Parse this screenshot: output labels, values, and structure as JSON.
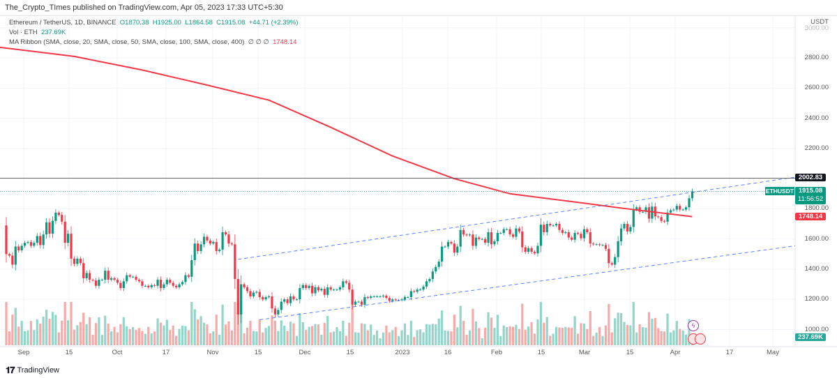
{
  "publisher_line": "The_Crypto_TImes published on TradingView.com, Apr 05, 2023 17:33 UTC+5:30",
  "legend": {
    "symbol": "Ethereum / TetherUS, 1D, BINANCE",
    "open": "O1870.38",
    "high": "H1925.00",
    "low": "L1864.58",
    "close": "C1915.08",
    "change": "+44.71 (+2.39%)",
    "vol_label": "Vol · ETH",
    "vol_value": "237.69K",
    "ma_label": "MA Ribbon (SMA, close, 20, SMA, close, 50, SMA, close, 100, SMA, close, 400)",
    "ma_dots": "∅ ∅ ∅",
    "ma_value": "1748.14"
  },
  "price_axis": {
    "currency": "USDT",
    "ticks": [
      "3000.00",
      "2800.00",
      "2600.00",
      "2400.00",
      "2200.00",
      "1800.00",
      "1600.00",
      "1400.00",
      "1200.00",
      "1000.00"
    ]
  },
  "tags": {
    "hline": "2002.83",
    "symbol": "ETHUSDT",
    "price": "1915.08",
    "countdown": "11:56:52",
    "ma": "1748.14",
    "volume": "237.69K"
  },
  "time_axis": [
    "Sep",
    "15",
    "Oct",
    "17",
    "Nov",
    "15",
    "Dec",
    "15",
    "2023",
    "16",
    "Feb",
    "15",
    "Mar",
    "15",
    "Apr",
    "17",
    "May"
  ],
  "footer": {
    "brand": "TradingView"
  },
  "colors": {
    "up": "#089981",
    "down": "#f23645",
    "ma": "#f23645",
    "trendline": "#2962ff",
    "hline": "#131722"
  },
  "chart_data": {
    "type": "candlestick",
    "start_date": "2022-08-26",
    "first_open": 1690,
    "closes": [
      1500,
      1490,
      1430,
      1550,
      1525,
      1555,
      1575,
      1580,
      1555,
      1575,
      1620,
      1560,
      1630,
      1710,
      1635,
      1720,
      1775,
      1760,
      1715,
      1575,
      1635,
      1470,
      1435,
      1470,
      1440,
      1340,
      1375,
      1330,
      1325,
      1290,
      1330,
      1330,
      1390,
      1330,
      1340,
      1330,
      1310,
      1275,
      1320,
      1360,
      1350,
      1350,
      1330,
      1320,
      1290,
      1290,
      1280,
      1295,
      1290,
      1330,
      1275,
      1300,
      1330,
      1310,
      1290,
      1280,
      1300,
      1315,
      1360,
      1350,
      1460,
      1570,
      1520,
      1565,
      1615,
      1590,
      1570,
      1580,
      1520,
      1530,
      1645,
      1630,
      1570,
      1565,
      1335,
      1100,
      1300,
      1280,
      1255,
      1220,
      1245,
      1250,
      1215,
      1200,
      1215,
      1220,
      1140,
      1100,
      1130,
      1185,
      1200,
      1175,
      1220,
      1200,
      1200,
      1275,
      1295,
      1275,
      1290,
      1240,
      1280,
      1260,
      1270,
      1230,
      1280,
      1265,
      1265,
      1265,
      1280,
      1320,
      1310,
      1265,
      1165,
      1185,
      1185,
      1165,
      1215,
      1210,
      1220,
      1220,
      1220,
      1220,
      1225,
      1210,
      1190,
      1200,
      1195,
      1195,
      1200,
      1215,
      1215,
      1255,
      1250,
      1265,
      1265,
      1285,
      1320,
      1335,
      1385,
      1415,
      1450,
      1550,
      1550,
      1580,
      1570,
      1510,
      1550,
      1660,
      1630,
      1625,
      1630,
      1555,
      1610,
      1600,
      1600,
      1575,
      1645,
      1565,
      1585,
      1640,
      1640,
      1665,
      1665,
      1630,
      1615,
      1670,
      1650,
      1545,
      1515,
      1540,
      1515,
      1505,
      1555,
      1695,
      1645,
      1700,
      1690,
      1690,
      1700,
      1660,
      1640,
      1645,
      1610,
      1595,
      1640,
      1635,
      1605,
      1665,
      1645,
      1570,
      1565,
      1565,
      1560,
      1560,
      1535,
      1440,
      1430,
      1480,
      1585,
      1670,
      1700,
      1650,
      1680,
      1795,
      1810,
      1780,
      1780,
      1810,
      1735,
      1815,
      1750,
      1745,
      1720,
      1715,
      1775,
      1790,
      1795,
      1820,
      1795,
      1795,
      1810,
      1870,
      1915.08
    ],
    "last_volume_k": 237.69,
    "ma400": [
      [
        "2022-08-26",
        2870
      ],
      [
        "2022-09-17",
        2810
      ],
      [
        "2022-10-09",
        2720
      ],
      [
        "2022-10-30",
        2620
      ],
      [
        "2022-11-19",
        2520
      ],
      [
        "2022-12-09",
        2340
      ],
      [
        "2022-12-29",
        2150
      ],
      [
        "2023-01-18",
        2000
      ],
      [
        "2023-02-05",
        1900
      ],
      [
        "2023-02-28",
        1840
      ],
      [
        "2023-03-15",
        1800
      ],
      [
        "2023-04-05",
        1748.14
      ]
    ],
    "trendlines": [
      {
        "from": [
          "2022-11-09",
          1465
        ],
        "to": [
          "2023-05-17",
          2010
        ]
      },
      {
        "from": [
          "2022-11-16",
          1065
        ],
        "to": [
          "2023-05-17",
          1555
        ]
      }
    ],
    "hline": 2002.83,
    "ylim": [
      1000,
      3000
    ]
  }
}
